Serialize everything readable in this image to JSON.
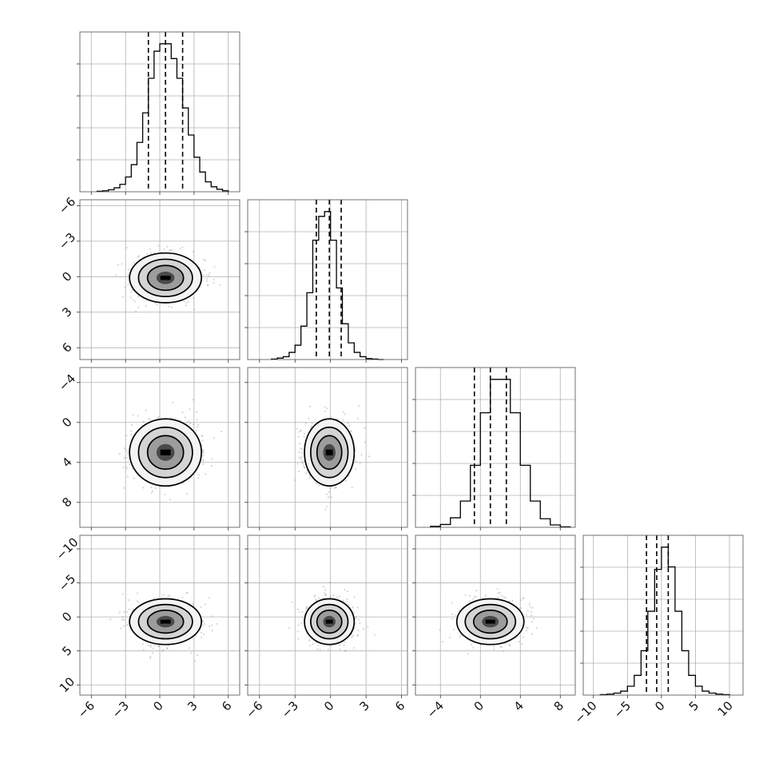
{
  "chart_data": {
    "type": "corner",
    "parameters": 4,
    "axes_ranges": [
      [
        -7,
        7
      ],
      [
        -7,
        6.5
      ],
      [
        -6.5,
        9.5
      ],
      [
        -11.5,
        12
      ]
    ],
    "y_ranges": [
      [
        -11,
        10.5
      ]
    ],
    "ticks": [
      [
        -6,
        -3,
        0,
        3,
        6
      ],
      [
        -6,
        -3,
        0,
        3,
        6
      ],
      [
        -4,
        0,
        4,
        8
      ],
      [
        -10,
        -5,
        0,
        5,
        10
      ]
    ],
    "tick_labels": [
      [
        "−6",
        "−3",
        "0",
        "3",
        "6"
      ],
      [
        "−6",
        "−3",
        "0",
        "3",
        "6"
      ],
      [
        "−4",
        "0",
        "4",
        "8"
      ],
      [
        "−10",
        "−5",
        "0",
        "5",
        "10"
      ]
    ],
    "y_tick_labels_rows": [
      [],
      [
        "6",
        "3",
        "0",
        "−3",
        "−6"
      ],
      [
        "8",
        "4",
        "0",
        "−4"
      ],
      [
        "10",
        "5",
        "0",
        "−5",
        "−10"
      ]
    ],
    "grid": true,
    "quantile_lines": [
      [
        -1.0,
        0.5,
        2.0
      ],
      [
        -1.2,
        -0.1,
        0.9
      ],
      [
        -0.6,
        1.0,
        2.6
      ],
      [
        -2.2,
        -0.7,
        1.0
      ]
    ],
    "means": [
      0.5,
      -0.1,
      1.0,
      -0.7
    ],
    "sigmas": [
      1.5,
      1.0,
      1.6,
      1.6
    ],
    "histograms": [
      {
        "bins": [
          -5.5,
          -5,
          -4.5,
          -4,
          -3.5,
          -3,
          -2.5,
          -2,
          -1.5,
          -1,
          -0.5,
          0,
          0.5,
          1,
          1.5,
          2,
          2.5,
          3,
          3.5,
          4,
          4.5,
          5,
          5.5,
          6
        ],
        "counts": [
          1,
          2,
          4,
          8,
          15,
          30,
          55,
          100,
          160,
          230,
          285,
          300,
          300,
          270,
          230,
          170,
          115,
          70,
          40,
          20,
          10,
          5,
          2
        ]
      },
      {
        "bins": [
          -5,
          -4.5,
          -4,
          -3.5,
          -3,
          -2.5,
          -2,
          -1.5,
          -1,
          -0.5,
          0,
          0.5,
          1,
          1.5,
          2,
          2.5,
          3,
          3.5,
          4,
          4.5
        ],
        "counts": [
          1,
          3,
          6,
          15,
          30,
          70,
          140,
          250,
          300,
          310,
          250,
          150,
          75,
          35,
          15,
          6,
          2,
          1,
          0
        ]
      },
      {
        "bins": [
          -5,
          -4,
          -3,
          -2,
          -1,
          0,
          1,
          2,
          3,
          4,
          5,
          6,
          7,
          8,
          9
        ],
        "counts": [
          2,
          6,
          20,
          55,
          130,
          240,
          310,
          310,
          240,
          130,
          55,
          18,
          5,
          1
        ]
      },
      {
        "bins": [
          -9,
          -8,
          -7,
          -6,
          -5,
          -4,
          -3,
          -2,
          -1,
          0,
          1,
          2,
          3,
          4,
          5,
          6,
          7,
          8,
          9,
          10
        ],
        "counts": [
          1,
          2,
          4,
          8,
          18,
          40,
          90,
          170,
          255,
          300,
          260,
          170,
          90,
          40,
          18,
          8,
          4,
          2,
          1
        ]
      }
    ],
    "contour_levels_sigma": [
      0.5,
      1.0,
      1.5,
      2.0
    ],
    "scatter": "gray points around each 2D density"
  }
}
